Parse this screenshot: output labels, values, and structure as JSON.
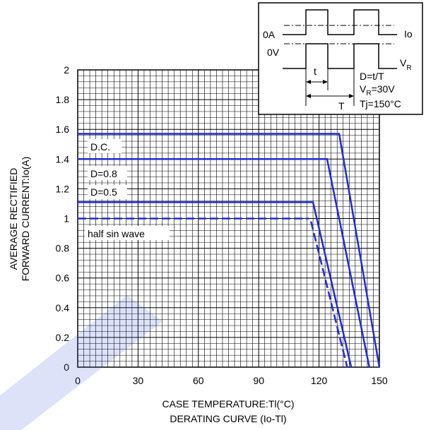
{
  "chart_data": {
    "type": "line",
    "xlabel": "CASE TEMPERATURE:Tl(°C)",
    "caption": "DERATING CURVE (Io-Tl)",
    "ylabel_line1": "AVERAGE RECTIFIED",
    "ylabel_line2": "FORWARD CURRENT:Io(A)",
    "xlim": [
      0,
      150
    ],
    "ylim": [
      0,
      2
    ],
    "x_ticks": [
      "0",
      "30",
      "60",
      "90",
      "120",
      "150"
    ],
    "x_tick_values": [
      0,
      30,
      60,
      90,
      120,
      150
    ],
    "y_ticks": [
      "0",
      "0.2",
      "0.4",
      "0.6",
      "0.8",
      "1",
      "1.2",
      "1.4",
      "1.6",
      "1.8",
      "2"
    ],
    "y_tick_values": [
      0,
      0.2,
      0.4,
      0.6,
      0.8,
      1,
      1.2,
      1.4,
      1.6,
      1.8,
      2
    ],
    "grid": true,
    "series": [
      {
        "name": "D.C.",
        "style": "solid",
        "x": [
          0,
          130,
          150
        ],
        "y": [
          1.57,
          1.57,
          0
        ]
      },
      {
        "name": "D=0.8",
        "style": "solid",
        "x": [
          0,
          124,
          145
        ],
        "y": [
          1.4,
          1.4,
          0
        ]
      },
      {
        "name": "D=0.5",
        "style": "solid",
        "x": [
          0,
          117,
          136
        ],
        "y": [
          1.11,
          1.11,
          0
        ]
      },
      {
        "name": "half sin wave",
        "style": "dashed",
        "x": [
          0,
          115
        ],
        "y": [
          1.0,
          1.0
        ]
      },
      {
        "name": "half sin wave",
        "style": "dashed",
        "x": [
          116,
          134
        ],
        "y": [
          0.98,
          0
        ]
      }
    ],
    "line_color": "#1f2bd6",
    "inset": {
      "label_0A": "0A",
      "label_Io": "Io",
      "label_0V": "0V",
      "label_VR": "V",
      "label_VR_sub": "R",
      "label_t": "t",
      "label_T": "T",
      "eq_D": "D=t/T",
      "eq_VR_a": "V",
      "eq_VR_sub": "R",
      "eq_VR_b": "=30V",
      "eq_Tj": "Tj=150°C"
    }
  }
}
